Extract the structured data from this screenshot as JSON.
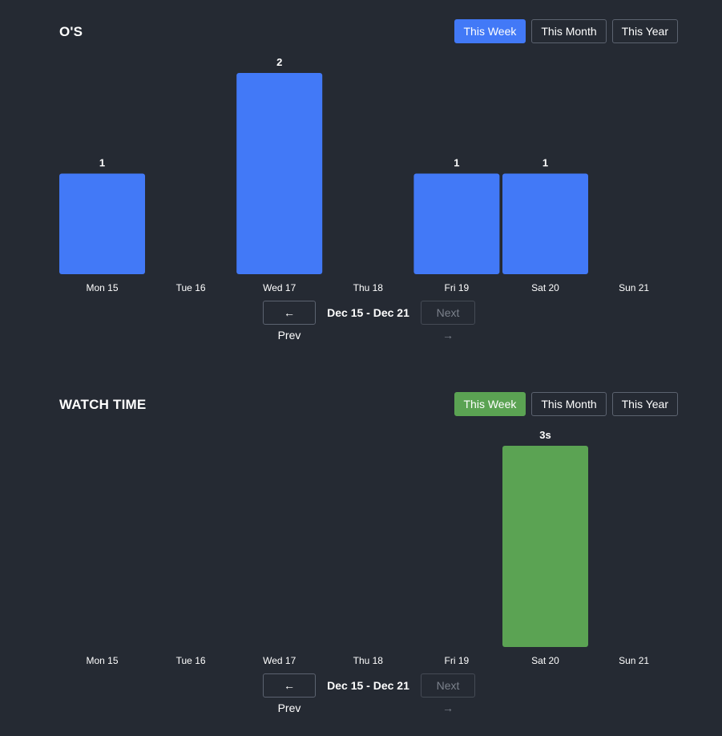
{
  "panels": [
    {
      "title": "O'S",
      "range_buttons": [
        "This Week",
        "This Month",
        "This Year"
      ],
      "active_range": "This Week",
      "accent_color": "#4279f7",
      "pager": {
        "prev_label": "← Prev",
        "range_label": "Dec 15 - Dec 21",
        "next_label": "Next →"
      }
    },
    {
      "title": "WATCH TIME",
      "range_buttons": [
        "This Week",
        "This Month",
        "This Year"
      ],
      "active_range": "This Week",
      "accent_color": "#5ba353",
      "pager": {
        "prev_label": "← Prev",
        "range_label": "Dec 15 - Dec 21",
        "next_label": "Next →"
      }
    }
  ],
  "chart_data": [
    {
      "type": "bar",
      "categories": [
        "Mon 15",
        "Tue 16",
        "Wed 17",
        "Thu 18",
        "Fri 19",
        "Sat 20",
        "Sun 21"
      ],
      "values": [
        1,
        0,
        2,
        0,
        1,
        1,
        0
      ],
      "data_labels": [
        "1",
        "",
        "2",
        "",
        "1",
        "1",
        ""
      ],
      "ylim": [
        0,
        2
      ],
      "color": "#4279f7",
      "grid": false
    },
    {
      "type": "bar",
      "categories": [
        "Mon 15",
        "Tue 16",
        "Wed 17",
        "Thu 18",
        "Fri 19",
        "Sat 20",
        "Sun 21"
      ],
      "values": [
        0,
        0,
        0,
        0,
        0,
        3,
        0
      ],
      "data_labels": [
        "",
        "",
        "",
        "",
        "",
        "3s",
        ""
      ],
      "unit": "s",
      "ylim": [
        0,
        3
      ],
      "color": "#5ba353",
      "grid": false
    }
  ]
}
